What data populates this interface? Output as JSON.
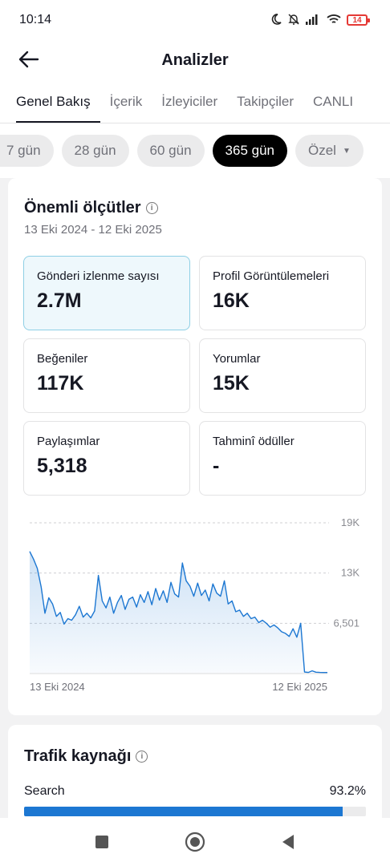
{
  "status_bar": {
    "time": "10:14",
    "battery": "14"
  },
  "header": {
    "title": "Analizler"
  },
  "tabs": [
    {
      "label": "Genel Bakış",
      "active": true
    },
    {
      "label": "İçerik"
    },
    {
      "label": "İzleyiciler"
    },
    {
      "label": "Takipçiler"
    },
    {
      "label": "CANLI"
    }
  ],
  "chips": [
    {
      "label": "7 gün"
    },
    {
      "label": "28 gün"
    },
    {
      "label": "60 gün"
    },
    {
      "label": "365 gün",
      "selected": true
    },
    {
      "label": "Özel"
    }
  ],
  "metrics_section": {
    "title": "Önemli ölçütler",
    "date_range": "13 Eki 2024 - 12 Eki 2025",
    "metrics": [
      {
        "label": "Gönderi izlenme sayısı",
        "value": "2.7M",
        "selected": true
      },
      {
        "label": "Profil Görüntülemeleri",
        "value": "16K"
      },
      {
        "label": "Beğeniler",
        "value": "117K"
      },
      {
        "label": "Yorumlar",
        "value": "15K"
      },
      {
        "label": "Paylaşımlar",
        "value": "5,318"
      },
      {
        "label": "Tahminî ödüller",
        "value": "-"
      }
    ]
  },
  "chart_data": {
    "type": "area",
    "x_start_label": "13 Eki 2024",
    "x_end_label": "12 Eki 2025",
    "y_ticks": [
      "19K",
      "13K",
      "6,501"
    ],
    "y_tick_values": [
      19500,
      13000,
      6501
    ],
    "ylim": [
      0,
      19500
    ],
    "grid": true,
    "line_color": "#1c77d2",
    "series": [
      {
        "values": [
          15800,
          14800,
          13600,
          11200,
          7800,
          9800,
          9000,
          7400,
          7900,
          6400,
          7100,
          6900,
          7600,
          8700,
          7300,
          7800,
          7200,
          8100,
          12700,
          9400,
          8500,
          9900,
          7800,
          9200,
          10100,
          8300,
          9600,
          9900,
          8600,
          10200,
          9200,
          10600,
          8900,
          11000,
          9500,
          10700,
          9200,
          11800,
          10300,
          9900,
          14300,
          12000,
          11300,
          10000,
          11700,
          10100,
          10800,
          9400,
          11600,
          10400,
          10000,
          12000,
          9000,
          9400,
          8000,
          8200,
          7400,
          7800,
          7100,
          7300,
          6600,
          6900,
          6500,
          6000,
          6300,
          5900,
          5400,
          5200,
          4800,
          5800,
          4700,
          6500,
          200,
          150,
          350,
          180,
          150,
          140,
          130
        ]
      }
    ]
  },
  "traffic_section": {
    "title": "Trafik kaynağı",
    "rows": [
      {
        "label": "Search",
        "value": "93.2%",
        "fraction": 0.932
      }
    ]
  }
}
